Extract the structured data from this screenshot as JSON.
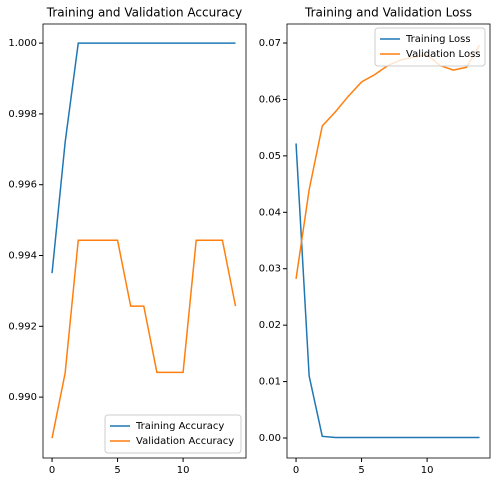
{
  "chart_data": [
    {
      "type": "line",
      "title": "Training and Validation Accuracy",
      "x": [
        0,
        1,
        2,
        3,
        4,
        5,
        6,
        7,
        8,
        9,
        10,
        11,
        12,
        13,
        14
      ],
      "series": [
        {
          "name": "Training Accuracy",
          "color": "#1f77b4",
          "values": [
            0.9935,
            0.9972,
            1.0,
            1.0,
            1.0,
            1.0,
            1.0,
            1.0,
            1.0,
            1.0,
            1.0,
            1.0,
            1.0,
            1.0,
            1.0
          ]
        },
        {
          "name": "Validation Accuracy",
          "color": "#ff7f0e",
          "values": [
            0.98884,
            0.99068,
            0.99443,
            0.99443,
            0.99443,
            0.99443,
            0.99257,
            0.99257,
            0.9907,
            0.9907,
            0.9907,
            0.99443,
            0.99443,
            0.99443,
            0.99257
          ]
        }
      ],
      "xlim": [
        -0.69,
        14.8
      ],
      "ylim": [
        0.98828,
        1.00054
      ],
      "xticks": [
        0,
        5,
        10
      ],
      "yticks": [
        {
          "value": 0.99,
          "label": "0.990"
        },
        {
          "value": 0.992,
          "label": "0.992"
        },
        {
          "value": 0.994,
          "label": "0.994"
        },
        {
          "value": 0.996,
          "label": "0.996"
        },
        {
          "value": 0.998,
          "label": "0.998"
        },
        {
          "value": 1.0,
          "label": "1.000"
        }
      ],
      "legend": "lower right"
    },
    {
      "type": "line",
      "title": "Training and Validation Loss",
      "x": [
        0,
        1,
        2,
        3,
        4,
        5,
        6,
        7,
        8,
        9,
        10,
        11,
        12,
        13,
        14
      ],
      "series": [
        {
          "name": "Training Loss",
          "color": "#1f77b4",
          "values": [
            0.0522,
            0.011,
            0.0003,
            0.0001,
            0.0001,
            0.0001,
            0.0001,
            0.0001,
            0.0001,
            0.0001,
            0.0001,
            0.0001,
            0.0001,
            0.0001,
            0.0001
          ]
        },
        {
          "name": "Validation Loss",
          "color": "#ff7f0e",
          "values": [
            0.0282,
            0.044,
            0.0553,
            0.0578,
            0.0606,
            0.0631,
            0.0644,
            0.066,
            0.067,
            0.0675,
            0.0679,
            0.066,
            0.0652,
            0.0657,
            0.0696
          ]
        }
      ],
      "xlim": [
        -0.69,
        14.8
      ],
      "ylim": [
        -0.00354,
        0.07337
      ],
      "xticks": [
        0,
        5,
        10
      ],
      "yticks": [
        {
          "value": 0,
          "label": "0.00"
        },
        {
          "value": 0.01,
          "label": "0.01"
        },
        {
          "value": 0.02,
          "label": "0.02"
        },
        {
          "value": 0.03,
          "label": "0.03"
        },
        {
          "value": 0.04,
          "label": "0.04"
        },
        {
          "value": 0.05,
          "label": "0.05"
        },
        {
          "value": 0.06,
          "label": "0.06"
        },
        {
          "value": 0.07,
          "label": "0.07"
        }
      ],
      "legend": "upper right"
    }
  ]
}
